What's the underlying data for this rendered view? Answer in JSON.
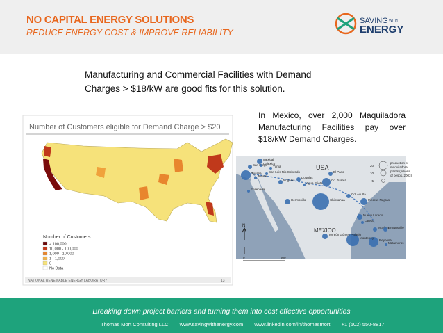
{
  "header": {
    "title": "NO CAPITAL ENERGY SOLUTIONS",
    "subtitle": "REDUCE ENERGY COST & IMPROVE RELIABILITY",
    "logo": {
      "top": "SAVING",
      "small": "WITH",
      "bottom": "ENERGY"
    }
  },
  "intro": [
    "Manufacturing and Commercial Facilities with Demand",
    "Charges > $18/kW are good fits for this solution."
  ],
  "mexico_text": "In Mexico, over 2,000 Maquiladora Manufacturing Facilities pay over $18/kW Demand Charges.",
  "us_map": {
    "title": "Number of Customers eligible for Demand Charge > $20",
    "legend_title": "Number of Customers",
    "legend": [
      "> 100,000",
      "10,000 - 100,000",
      "1,000 - 10,000",
      "1 - 1,000",
      "0",
      "No Data"
    ],
    "source": "NATIONAL RENEWABLE ENERGY LABORATORY",
    "page": "13"
  },
  "mexico_map": {
    "countries": [
      "USA",
      "MEXICO"
    ],
    "cities": [
      "San Diego",
      "Mexicali",
      "Calexico",
      "Yuma",
      "San Luis Rio Colorado",
      "Tijuana",
      "Tecate",
      "Ensenada",
      "Nogales",
      "Douglas",
      "El Paso",
      "Cd. Juarez",
      "Agua Prieta",
      "Hermosillo",
      "Chihuahua",
      "Cd. Acuña",
      "Piedras Negras",
      "Nuevo Laredo",
      "Laredo",
      "McAllen",
      "Brownsville",
      "Reynosa",
      "Matamoros",
      "Monterrey",
      "Torreón Gómez Palacio"
    ],
    "legend_values": [
      "20",
      "10",
      "5"
    ],
    "legend_text": [
      "production of",
      "maquiladora",
      "plants (billions",
      "of pesos, 2003)"
    ],
    "scale": [
      "0",
      "500"
    ],
    "north": "N"
  },
  "footer": {
    "tagline": "Breaking down project barriers and turning them into cost effective opportunities",
    "company": "Thomas Mort Consulting LLC",
    "website": "www.savingwithenergy.com",
    "linkedin": "www.linkedin.com/in/thomasmort",
    "phone": "+1 (502) 550-8817"
  }
}
